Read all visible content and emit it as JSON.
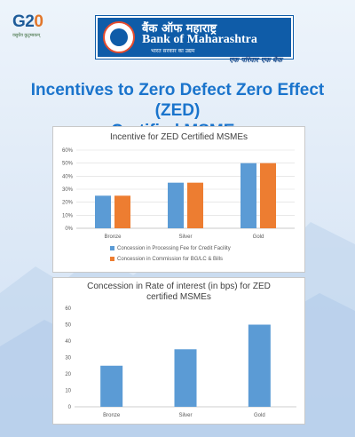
{
  "header": {
    "g20_logo_text": "G20",
    "g20_sub": "वसुधैव कुटुम्बकम्",
    "bank_name_hindi": "बैंक ऑफ महाराष्ट्र",
    "bank_name_english": "Bank of Maharashtra",
    "bank_tagline": "भारत सरकार का उद्यम",
    "slogan": "एक परिवार एक बैंक"
  },
  "title_line1": "Incentives to Zero Defect Zero Effect (ZED)",
  "title_line2": "Certified MSMEs",
  "colors": {
    "blue": "#5b9bd5",
    "orange": "#ed7d31",
    "title_blue": "#1a74cc"
  },
  "chart_data": [
    {
      "type": "bar",
      "title": "Incentive for ZED Certified MSMEs",
      "categories": [
        "Bronze",
        "Silver",
        "Gold"
      ],
      "series": [
        {
          "name": "Concession in Processing Fee for Credit Facility",
          "values": [
            25,
            35,
            50
          ],
          "color": "#5b9bd5"
        },
        {
          "name": "Concession in Commission for BG/LC & Bills",
          "values": [
            25,
            35,
            50
          ],
          "color": "#ed7d31"
        }
      ],
      "ylim": [
        0,
        60
      ],
      "yticks": [
        0,
        10,
        20,
        30,
        40,
        50,
        60
      ],
      "ytick_labels": [
        "0%",
        "10%",
        "20%",
        "30%",
        "40%",
        "50%",
        "60%"
      ],
      "grid": true,
      "legend": "bottom"
    },
    {
      "type": "bar",
      "title_lines": [
        "Concession in Rate of interest (in bps) for ZED",
        "certified MSMEs"
      ],
      "categories": [
        "Bronze",
        "Silver",
        "Gold"
      ],
      "series": [
        {
          "values": [
            25,
            35,
            50
          ],
          "color": "#5b9bd5"
        }
      ],
      "ylim": [
        0,
        60
      ],
      "yticks": [
        0,
        10,
        20,
        30,
        40,
        50,
        60
      ],
      "ytick_labels": [
        "0",
        "10",
        "20",
        "30",
        "40",
        "50",
        "60"
      ],
      "grid": false
    }
  ]
}
